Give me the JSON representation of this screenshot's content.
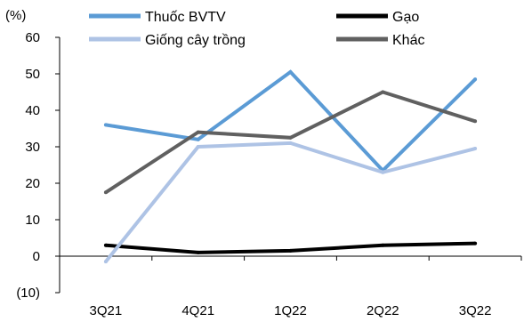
{
  "chart_data": {
    "type": "line",
    "title": "",
    "ylabel": "",
    "y_unit_label": "(%)",
    "xlabel": "",
    "categories": [
      "3Q21",
      "4Q21",
      "1Q22",
      "2Q22",
      "3Q22"
    ],
    "ylim": [
      -10,
      60
    ],
    "yticks": [
      -10,
      0,
      10,
      20,
      30,
      40,
      50,
      60
    ],
    "ytick_labels": [
      "(10)",
      "0",
      "10",
      "20",
      "30",
      "40",
      "50",
      "60"
    ],
    "grid": false,
    "legend_position": "top",
    "series": [
      {
        "name": "Thuốc BVTV",
        "color": "#5b9bd5",
        "values": [
          36,
          32,
          50.5,
          23.5,
          48.5
        ]
      },
      {
        "name": "Gạo",
        "color": "#000000",
        "values": [
          3,
          1,
          1.5,
          3,
          3.5
        ]
      },
      {
        "name": "Giống cây trồng",
        "color": "#aec3e5",
        "values": [
          -1.5,
          30,
          31,
          23,
          29.5
        ]
      },
      {
        "name": "Khác",
        "color": "#606060",
        "values": [
          17.5,
          34,
          32.5,
          45,
          37
        ]
      }
    ]
  }
}
